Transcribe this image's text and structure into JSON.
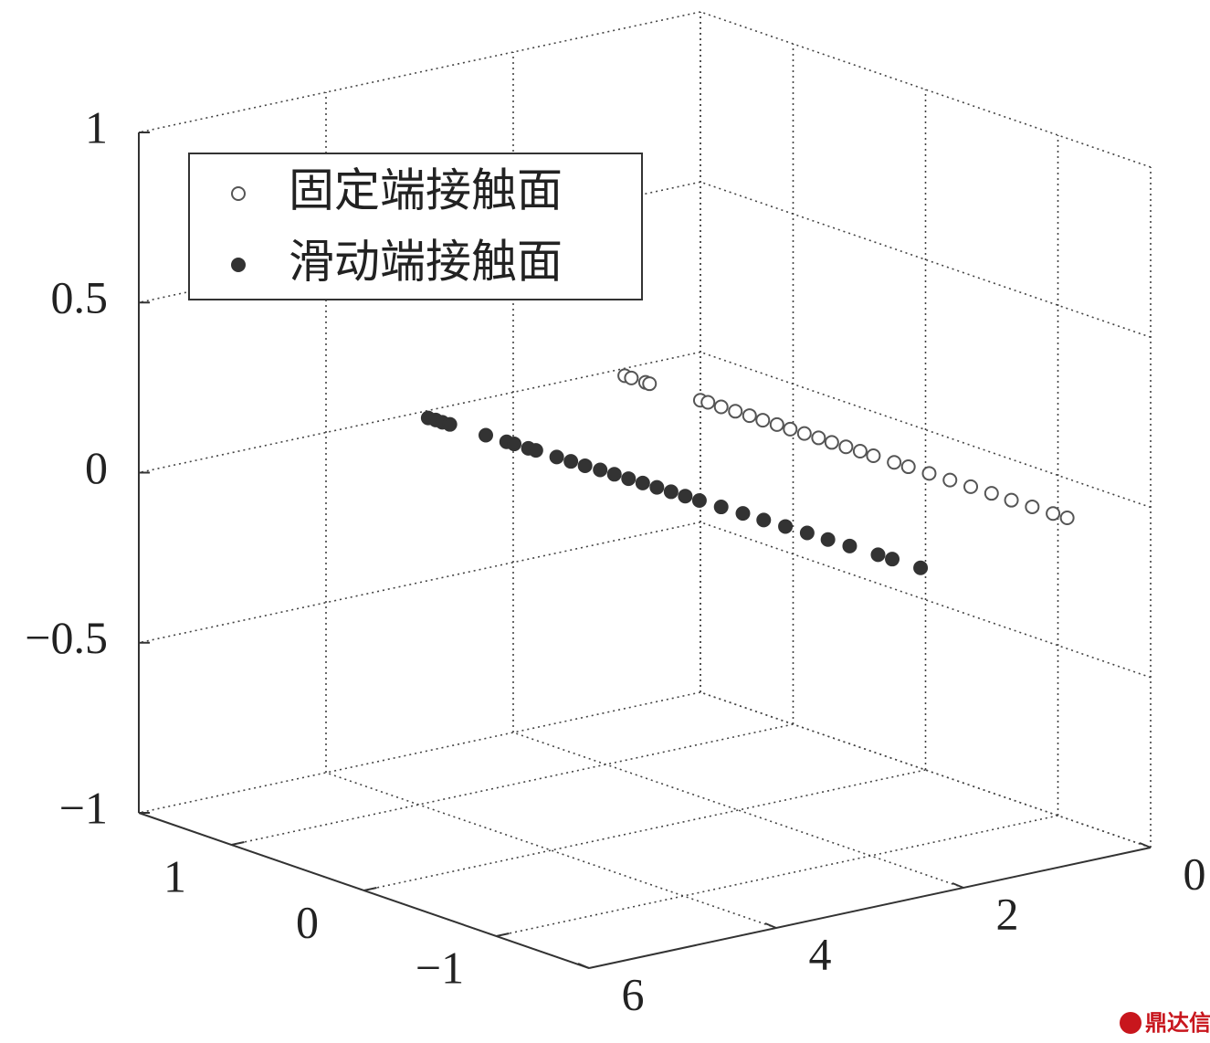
{
  "chart_data": {
    "type": "scatter3d",
    "xlim": [
      0,
      6
    ],
    "xticks": [
      0,
      2,
      4,
      6
    ],
    "ylim": [
      -1.7,
      1.7
    ],
    "yticks": [
      {
        "value": -1,
        "label": "−1"
      },
      0,
      1
    ],
    "zlim": [
      -1,
      1
    ],
    "zticks": [
      {
        "value": -1,
        "label": "−1"
      },
      {
        "value": -0.5,
        "label": "−0.5"
      },
      0,
      0.5,
      1
    ],
    "grid": true,
    "legend": "upper left",
    "series": [
      {
        "name": "固定端接触面",
        "color": "#555555",
        "marker": "open",
        "x": [
          0.95,
          0.95,
          0.94,
          0.94,
          0.92,
          0.91,
          0.91,
          0.9,
          0.89,
          0.89,
          0.88,
          0.88,
          0.87,
          0.86,
          0.86,
          0.85,
          0.84,
          0.84,
          0.83,
          0.82,
          0.81,
          0.8,
          0.79,
          0.78,
          0.78,
          0.77,
          0.76,
          0.75
        ],
        "y": [
          1.6,
          1.55,
          1.45,
          1.42,
          1.05,
          1.0,
          0.9,
          0.8,
          0.7,
          0.6,
          0.5,
          0.4,
          0.3,
          0.2,
          0.1,
          0,
          -0.1,
          -0.2,
          -0.35,
          -0.45,
          -0.6,
          -0.75,
          -0.9,
          -1.05,
          -1.2,
          -1.35,
          -1.5,
          -1.6
        ],
        "z": [
          0,
          0,
          0,
          0,
          0,
          0,
          0,
          0,
          0,
          0,
          0,
          0,
          0,
          0,
          0,
          0,
          0,
          0,
          0,
          0,
          0,
          0,
          0,
          0,
          0,
          0,
          0,
          0
        ]
      },
      {
        "name": "滑动端接触面",
        "color": "#333333",
        "marker": "filled",
        "x": [
          3.05,
          3.04,
          3.04,
          3.03,
          3.0,
          2.99,
          2.98,
          2.97,
          2.96,
          2.95,
          2.94,
          2.93,
          2.91,
          2.9,
          2.89,
          2.88,
          2.87,
          2.86,
          2.85,
          2.84,
          2.82,
          2.8,
          2.79,
          2.77,
          2.75,
          2.74,
          2.72,
          2.7,
          2.69,
          2.67
        ],
        "y": [
          1.6,
          1.55,
          1.5,
          1.45,
          1.2,
          1.05,
          1.0,
          0.9,
          0.85,
          0.7,
          0.6,
          0.5,
          0.4,
          0.3,
          0.2,
          0.1,
          0,
          -0.1,
          -0.2,
          -0.3,
          -0.45,
          -0.6,
          -0.75,
          -0.9,
          -1.05,
          -1.2,
          -1.35,
          -1.55,
          -1.65,
          -1.85
        ],
        "z": [
          0,
          0,
          0,
          0,
          0,
          0,
          0,
          0,
          0,
          0,
          0,
          0,
          0,
          0,
          0,
          0,
          0,
          0,
          0,
          0,
          0,
          0,
          0,
          0,
          0,
          0,
          0,
          0,
          0,
          0
        ]
      }
    ]
  },
  "watermark": "鼎达信"
}
